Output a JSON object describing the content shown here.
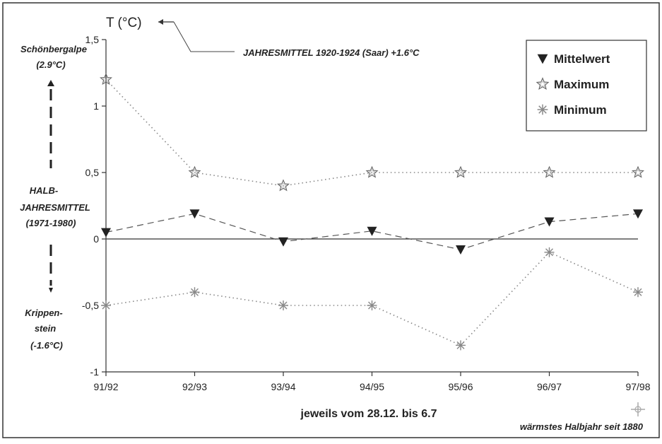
{
  "chart_data": {
    "type": "line",
    "title": "",
    "ylabel": "T (°C)",
    "xlabel": "jeweils vom 28.12. bis 6.7",
    "categories": [
      "91/92",
      "92/93",
      "93/94",
      "94/95",
      "95/96",
      "96/97",
      "97/98"
    ],
    "ylim": [
      -1,
      1.5
    ],
    "yticks": [
      "-1",
      "-0,5",
      "0",
      "0,5",
      "1",
      "1,5"
    ],
    "ytick_values": [
      -1,
      -0.5,
      0,
      0.5,
      1,
      1.5
    ],
    "grid": false,
    "legend_position": "top-right",
    "series": [
      {
        "name": "Mittelwert",
        "values": [
          0.05,
          0.19,
          -0.02,
          0.06,
          -0.08,
          0.13,
          0.19
        ],
        "marker": "triangle-down",
        "line": "dashed"
      },
      {
        "name": "Maximum",
        "values": [
          1.2,
          0.5,
          0.4,
          0.5,
          0.5,
          0.5,
          0.5
        ],
        "marker": "star",
        "line": "dotted"
      },
      {
        "name": "Minimum",
        "values": [
          -0.5,
          -0.4,
          -0.5,
          -0.5,
          -0.8,
          -0.1,
          -0.4
        ],
        "marker": "asterisk",
        "line": "dotted"
      }
    ]
  },
  "annotations": {
    "top_ref_name": "Schönbergalpe",
    "top_ref_value": "(2.9°C)",
    "mid_ref_line1": "HALB-",
    "mid_ref_line2": "JAHRESMITTEL",
    "mid_ref_line3": "(1971-1980)",
    "bottom_ref_line1": "Krippen-",
    "bottom_ref_line2": "stein",
    "bottom_ref_value": "(-1.6°C)",
    "jahresmittel": "JAHRESMITTEL 1920-1924 (Saar) +1.6°C",
    "warmest": "wärmstes Halbjahr seit 1880"
  },
  "colors": {
    "ink": "#222222",
    "marker_light": "#888888",
    "frame": "#333333"
  }
}
